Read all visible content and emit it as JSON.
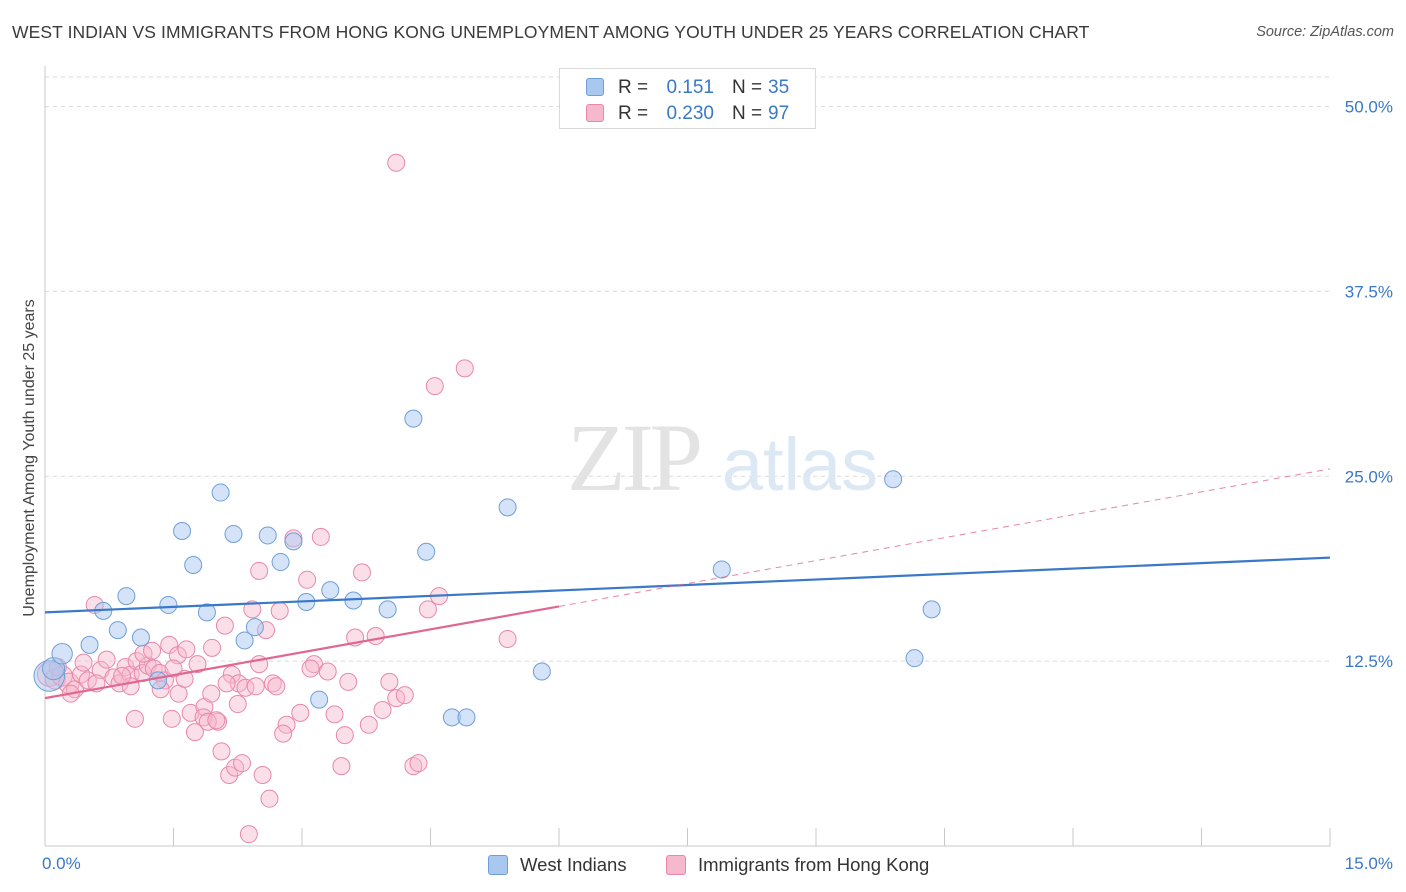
{
  "title": "WEST INDIAN VS IMMIGRANTS FROM HONG KONG UNEMPLOYMENT AMONG YOUTH UNDER 25 YEARS CORRELATION CHART",
  "source": "Source: ZipAtlas.com",
  "watermark": {
    "zip": "ZIP",
    "atlas": "atlas"
  },
  "legend_top": [
    {
      "r_label": "R =",
      "r_value": "0.151",
      "n_label": "N =",
      "n_value": "35"
    },
    {
      "r_label": "R =",
      "r_value": "0.230",
      "n_label": "N =",
      "n_value": "97"
    }
  ],
  "colors": {
    "blue_fill": "#a9c8ef",
    "blue_stroke": "#6f9fd8",
    "blue_line": "#3a78c8",
    "pink_fill": "#f6b8cc",
    "pink_stroke": "#e888a8",
    "pink_line": "#e0688f",
    "grid": "#d9d9d9",
    "axis_text": "#3a78c8"
  },
  "chart_data": {
    "type": "scatter",
    "title": "WEST INDIAN VS IMMIGRANTS FROM HONG KONG UNEMPLOYMENT AMONG YOUTH UNDER 25 YEARS CORRELATION CHART",
    "xlabel": "",
    "ylabel": "Unemployment Among Youth under 25 years",
    "xlim": [
      0,
      15
    ],
    "ylim": [
      0,
      52
    ],
    "x_tick_labels": [
      {
        "value": 0,
        "label": "0.0%"
      },
      {
        "value": 15,
        "label": "15.0%"
      }
    ],
    "y_tick_labels": [
      {
        "value": 12.5,
        "label": "12.5%"
      },
      {
        "value": 25,
        "label": "25.0%"
      },
      {
        "value": 37.5,
        "label": "37.5%"
      },
      {
        "value": 50,
        "label": "50.0%"
      }
    ],
    "x_minor_ticks": [
      1.5,
      3,
      4.5,
      6,
      7.5,
      9,
      10.5,
      12,
      13.5,
      15
    ],
    "series": [
      {
        "name": "West Indians",
        "r": 0.151,
        "n": 35,
        "trend": {
          "x": [
            0,
            15
          ],
          "y": [
            15.8,
            19.5
          ],
          "dashed_extension": false
        },
        "points": [
          {
            "x": 0.05,
            "y": 11.5,
            "s": 1.8
          },
          {
            "x": 0.1,
            "y": 12.0,
            "s": 1.3
          },
          {
            "x": 0.2,
            "y": 13.0,
            "s": 1.2
          },
          {
            "x": 0.52,
            "y": 13.6,
            "s": 1.0
          },
          {
            "x": 0.68,
            "y": 15.9,
            "s": 1.0
          },
          {
            "x": 0.85,
            "y": 14.6,
            "s": 1.0
          },
          {
            "x": 0.95,
            "y": 16.9,
            "s": 1.0
          },
          {
            "x": 1.12,
            "y": 14.1,
            "s": 1.0
          },
          {
            "x": 1.32,
            "y": 11.2,
            "s": 1.0
          },
          {
            "x": 1.44,
            "y": 16.3,
            "s": 1.0
          },
          {
            "x": 1.6,
            "y": 21.3,
            "s": 1.0
          },
          {
            "x": 1.73,
            "y": 19.0,
            "s": 1.0
          },
          {
            "x": 1.89,
            "y": 15.8,
            "s": 1.0
          },
          {
            "x": 2.05,
            "y": 23.9,
            "s": 1.0
          },
          {
            "x": 2.2,
            "y": 21.1,
            "s": 1.0
          },
          {
            "x": 2.33,
            "y": 13.9,
            "s": 1.0
          },
          {
            "x": 2.45,
            "y": 14.8,
            "s": 1.0
          },
          {
            "x": 2.6,
            "y": 21.0,
            "s": 1.0
          },
          {
            "x": 2.75,
            "y": 19.2,
            "s": 1.0
          },
          {
            "x": 2.9,
            "y": 20.6,
            "s": 1.0
          },
          {
            "x": 3.05,
            "y": 16.5,
            "s": 1.0
          },
          {
            "x": 3.2,
            "y": 9.9,
            "s": 1.0
          },
          {
            "x": 3.33,
            "y": 17.3,
            "s": 1.0
          },
          {
            "x": 3.6,
            "y": 16.6,
            "s": 1.0
          },
          {
            "x": 4.0,
            "y": 16.0,
            "s": 1.0
          },
          {
            "x": 4.3,
            "y": 28.9,
            "s": 1.0
          },
          {
            "x": 4.45,
            "y": 19.9,
            "s": 1.0
          },
          {
            "x": 4.75,
            "y": 8.7,
            "s": 1.0
          },
          {
            "x": 4.92,
            "y": 8.7,
            "s": 1.0
          },
          {
            "x": 5.4,
            "y": 22.9,
            "s": 1.0
          },
          {
            "x": 5.8,
            "y": 11.8,
            "s": 1.0
          },
          {
            "x": 7.9,
            "y": 18.7,
            "s": 1.0
          },
          {
            "x": 9.9,
            "y": 24.8,
            "s": 1.0
          },
          {
            "x": 10.15,
            "y": 12.7,
            "s": 1.0
          },
          {
            "x": 10.35,
            "y": 16.0,
            "s": 1.0
          }
        ]
      },
      {
        "name": "Immigrants from Hong Kong",
        "r": 0.23,
        "n": 97,
        "trend": {
          "x": [
            0,
            6
          ],
          "y": [
            10.0,
            16.2
          ],
          "dashed_extension": true,
          "dash_to": [
            15,
            25.5
          ]
        },
        "points": [
          {
            "x": 0.05,
            "y": 11.6,
            "s": 1.4
          },
          {
            "x": 0.12,
            "y": 11.3,
            "s": 1.2
          },
          {
            "x": 0.2,
            "y": 11.5,
            "s": 1.2
          },
          {
            "x": 0.28,
            "y": 11.0,
            "s": 1.2
          },
          {
            "x": 0.35,
            "y": 10.6,
            "s": 1.0
          },
          {
            "x": 0.42,
            "y": 11.6,
            "s": 1.0
          },
          {
            "x": 0.5,
            "y": 11.2,
            "s": 1.0
          },
          {
            "x": 0.58,
            "y": 16.3,
            "s": 1.0
          },
          {
            "x": 0.65,
            "y": 11.9,
            "s": 1.0
          },
          {
            "x": 0.72,
            "y": 12.6,
            "s": 1.0
          },
          {
            "x": 0.8,
            "y": 11.4,
            "s": 1.0
          },
          {
            "x": 0.87,
            "y": 11.0,
            "s": 1.0
          },
          {
            "x": 0.94,
            "y": 12.1,
            "s": 1.0
          },
          {
            "x": 1.0,
            "y": 11.6,
            "s": 1.0
          },
          {
            "x": 1.07,
            "y": 12.5,
            "s": 1.0
          },
          {
            "x": 1.14,
            "y": 11.7,
            "s": 1.0
          },
          {
            "x": 1.2,
            "y": 12.2,
            "s": 1.0
          },
          {
            "x": 1.27,
            "y": 12.0,
            "s": 1.0
          },
          {
            "x": 1.34,
            "y": 11.7,
            "s": 1.0
          },
          {
            "x": 1.4,
            "y": 11.2,
            "s": 1.0
          },
          {
            "x": 1.48,
            "y": 8.6,
            "s": 1.0
          },
          {
            "x": 1.56,
            "y": 10.3,
            "s": 1.0
          },
          {
            "x": 1.63,
            "y": 11.3,
            "s": 1.0
          },
          {
            "x": 1.7,
            "y": 9.0,
            "s": 1.0
          },
          {
            "x": 1.78,
            "y": 12.3,
            "s": 1.0
          },
          {
            "x": 1.86,
            "y": 9.4,
            "s": 1.0
          },
          {
            "x": 1.94,
            "y": 10.3,
            "s": 1.0
          },
          {
            "x": 2.02,
            "y": 8.4,
            "s": 1.0
          },
          {
            "x": 2.1,
            "y": 14.9,
            "s": 1.0
          },
          {
            "x": 2.18,
            "y": 11.6,
            "s": 1.0
          },
          {
            "x": 2.26,
            "y": 11.0,
            "s": 1.0
          },
          {
            "x": 2.34,
            "y": 10.7,
            "s": 1.0
          },
          {
            "x": 2.42,
            "y": 16.0,
            "s": 1.0
          },
          {
            "x": 2.5,
            "y": 18.6,
            "s": 1.0
          },
          {
            "x": 2.58,
            "y": 14.6,
            "s": 1.0
          },
          {
            "x": 2.66,
            "y": 11.0,
            "s": 1.0
          },
          {
            "x": 2.74,
            "y": 15.9,
            "s": 1.0
          },
          {
            "x": 2.82,
            "y": 8.2,
            "s": 1.0
          },
          {
            "x": 2.9,
            "y": 20.8,
            "s": 1.0
          },
          {
            "x": 2.98,
            "y": 9.0,
            "s": 1.0
          },
          {
            "x": 3.06,
            "y": 18.0,
            "s": 1.0
          },
          {
            "x": 3.14,
            "y": 12.3,
            "s": 1.0
          },
          {
            "x": 3.22,
            "y": 20.9,
            "s": 1.0
          },
          {
            "x": 3.3,
            "y": 11.8,
            "s": 1.0
          },
          {
            "x": 3.38,
            "y": 8.9,
            "s": 1.0
          },
          {
            "x": 3.46,
            "y": 5.4,
            "s": 1.0
          },
          {
            "x": 3.54,
            "y": 11.1,
            "s": 1.0
          },
          {
            "x": 3.62,
            "y": 14.1,
            "s": 1.0
          },
          {
            "x": 3.7,
            "y": 18.5,
            "s": 1.0
          },
          {
            "x": 3.78,
            "y": 8.2,
            "s": 1.0
          },
          {
            "x": 3.86,
            "y": 14.2,
            "s": 1.0
          },
          {
            "x": 3.94,
            "y": 9.2,
            "s": 1.0
          },
          {
            "x": 4.02,
            "y": 11.1,
            "s": 1.0
          },
          {
            "x": 4.1,
            "y": 10.0,
            "s": 1.0
          },
          {
            "x": 4.2,
            "y": 10.2,
            "s": 1.0
          },
          {
            "x": 4.3,
            "y": 5.4,
            "s": 1.0
          },
          {
            "x": 4.36,
            "y": 5.6,
            "s": 1.0
          },
          {
            "x": 4.47,
            "y": 16.0,
            "s": 1.0
          },
          {
            "x": 4.6,
            "y": 16.9,
            "s": 1.0
          },
          {
            "x": 4.1,
            "y": 46.2,
            "s": 1.0
          },
          {
            "x": 4.55,
            "y": 31.1,
            "s": 1.0
          },
          {
            "x": 4.9,
            "y": 32.3,
            "s": 1.0
          },
          {
            "x": 5.4,
            "y": 14.0,
            "s": 1.0
          },
          {
            "x": 1.0,
            "y": 10.8,
            "s": 1.0
          },
          {
            "x": 1.15,
            "y": 13.0,
            "s": 1.0
          },
          {
            "x": 1.25,
            "y": 13.2,
            "s": 1.0
          },
          {
            "x": 1.45,
            "y": 13.6,
            "s": 1.0
          },
          {
            "x": 1.55,
            "y": 12.9,
            "s": 1.0
          },
          {
            "x": 1.65,
            "y": 13.3,
            "s": 1.0
          },
          {
            "x": 1.75,
            "y": 7.7,
            "s": 1.0
          },
          {
            "x": 1.85,
            "y": 8.7,
            "s": 1.0
          },
          {
            "x": 1.9,
            "y": 8.4,
            "s": 1.0
          },
          {
            "x": 2.0,
            "y": 8.5,
            "s": 1.0
          },
          {
            "x": 2.06,
            "y": 6.4,
            "s": 1.0
          },
          {
            "x": 2.15,
            "y": 4.8,
            "s": 1.0
          },
          {
            "x": 2.22,
            "y": 5.3,
            "s": 1.0
          },
          {
            "x": 2.3,
            "y": 5.6,
            "s": 1.0
          },
          {
            "x": 2.38,
            "y": 0.8,
            "s": 1.0
          },
          {
            "x": 2.46,
            "y": 10.8,
            "s": 1.0
          },
          {
            "x": 2.54,
            "y": 4.8,
            "s": 1.0
          },
          {
            "x": 2.62,
            "y": 3.2,
            "s": 1.0
          },
          {
            "x": 2.7,
            "y": 10.8,
            "s": 1.0
          },
          {
            "x": 2.78,
            "y": 7.6,
            "s": 1.0
          },
          {
            "x": 0.3,
            "y": 10.3,
            "s": 1.0
          },
          {
            "x": 0.6,
            "y": 11.0,
            "s": 1.0
          },
          {
            "x": 0.9,
            "y": 11.5,
            "s": 1.0
          },
          {
            "x": 1.05,
            "y": 8.6,
            "s": 1.0
          },
          {
            "x": 1.35,
            "y": 10.6,
            "s": 1.0
          },
          {
            "x": 1.5,
            "y": 12.0,
            "s": 1.0
          },
          {
            "x": 1.95,
            "y": 13.4,
            "s": 1.0
          },
          {
            "x": 2.12,
            "y": 11.0,
            "s": 1.0
          },
          {
            "x": 2.25,
            "y": 9.6,
            "s": 1.0
          },
          {
            "x": 2.5,
            "y": 12.3,
            "s": 1.0
          },
          {
            "x": 3.1,
            "y": 12.0,
            "s": 1.0
          },
          {
            "x": 3.5,
            "y": 7.5,
            "s": 1.0
          },
          {
            "x": 0.15,
            "y": 12.1,
            "s": 1.0
          },
          {
            "x": 0.45,
            "y": 12.4,
            "s": 1.0
          }
        ]
      }
    ]
  },
  "legend_bottom": [
    {
      "label": "West Indians"
    },
    {
      "label": "Immigrants from Hong Kong"
    }
  ]
}
